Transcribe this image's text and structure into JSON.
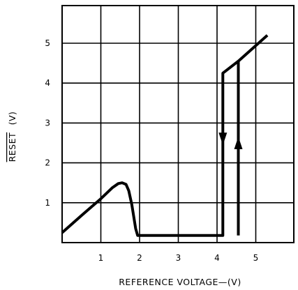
{
  "chart_data": {
    "type": "line",
    "title": "",
    "xlabel": "REFERENCE VOLTAGE—(V)",
    "ylabel": "RESET (V)",
    "ylabel_overline": "RESET",
    "ylabel_unit": "(V)",
    "xlim": [
      0,
      6
    ],
    "ylim": [
      0,
      6
    ],
    "xticks": [
      1,
      2,
      3,
      4,
      5
    ],
    "xtick_labels": [
      "1",
      "2",
      "3",
      "4",
      "5"
    ],
    "yticks": [
      1,
      2,
      3,
      4,
      5
    ],
    "ytick_labels": [
      "1",
      "2",
      "3",
      "4",
      "5"
    ],
    "grid": true,
    "series": [
      {
        "points": [
          [
            0,
            0.25
          ],
          [
            0.5,
            0.68
          ],
          [
            1.0,
            1.1
          ],
          [
            1.3,
            1.38
          ],
          [
            1.45,
            1.48
          ],
          [
            1.55,
            1.5
          ],
          [
            1.65,
            1.46
          ],
          [
            1.72,
            1.3
          ],
          [
            1.8,
            0.95
          ],
          [
            1.9,
            0.35
          ],
          [
            1.95,
            0.18
          ],
          [
            4.15,
            0.18
          ],
          [
            4.15,
            4.25
          ],
          [
            4.55,
            4.55
          ],
          [
            5.3,
            5.2
          ]
        ],
        "retrace": [
          [
            4.55,
            0.18
          ],
          [
            4.55,
            4.55
          ]
        ],
        "arrows": [
          {
            "x": 4.15,
            "y": 2.6,
            "direction": "down"
          },
          {
            "x": 4.55,
            "y": 2.5,
            "direction": "up"
          }
        ]
      }
    ]
  },
  "colors": {
    "line": "#000000",
    "grid": "#000000",
    "background": "#ffffff"
  }
}
